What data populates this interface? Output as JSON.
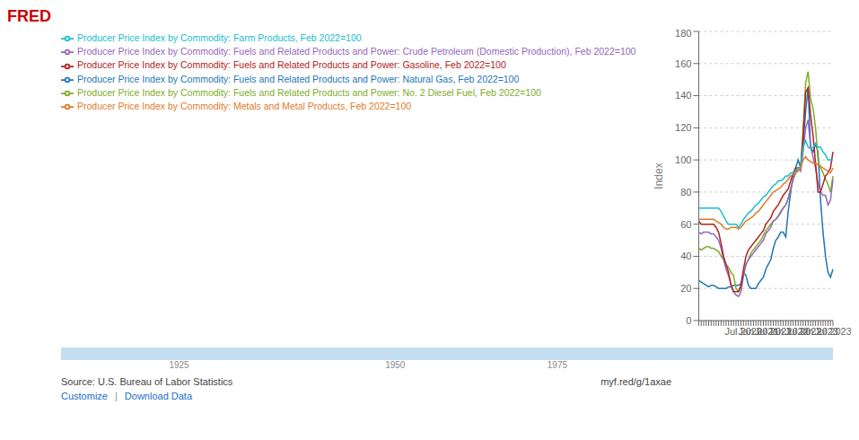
{
  "chart_data": {
    "type": "line",
    "ylabel": "Index",
    "ylim": [
      0,
      180
    ],
    "yticks": [
      0,
      20,
      40,
      60,
      80,
      100,
      120,
      140,
      160,
      180
    ],
    "grid": true,
    "legend": "top",
    "categories": [
      null,
      null,
      null,
      null,
      null,
      null,
      null,
      null,
      null,
      null,
      null,
      null,
      null,
      null,
      null,
      null,
      null,
      null,
      "Jul 2020",
      null,
      null,
      null,
      null,
      null,
      "Jan 2021",
      null,
      null,
      null,
      null,
      null,
      "Jul 2021",
      null,
      null,
      null,
      null,
      null,
      "Jan 2022",
      null,
      null,
      null,
      null,
      null,
      "Jul 2022",
      null,
      null,
      null,
      null,
      null,
      "Jan 2023",
      null,
      null,
      null,
      null,
      null,
      "Jul 2023"
    ],
    "annotations": [
      "FRED",
      "1925",
      "1950",
      "1975",
      "Source: U.S. Bureau of Labor Statistics",
      "myf.red/g/1axae",
      "Customize",
      "|",
      "Download Data"
    ],
    "series": [
      {
        "name": "Producer Price Index by Commodity: Fuels and Related Products and Power: Natural Gas, Feb 2022=100",
        "color": "#1f77b4",
        "values": [
          25,
          24,
          23,
          22,
          21,
          22,
          22,
          21,
          20,
          20,
          20,
          20,
          21,
          21,
          22,
          22,
          22,
          23,
          30,
          28,
          22,
          20,
          20,
          20,
          23,
          25,
          27,
          32,
          35,
          38,
          45,
          50,
          52,
          55,
          55,
          52,
          68,
          80,
          90,
          95,
          100,
          95,
          110,
          130,
          145,
          108,
          105,
          110,
          105,
          75,
          55,
          40,
          30,
          27,
          32
        ]
      },
      {
        "name": "Producer Price Index by Commodity: Fuels and Related Products and Power: No. 2 Diesel Fuel, Feb 2022=100",
        "color": "#7fac2a",
        "values": [
          45,
          44,
          45,
          46,
          46,
          45,
          45,
          44,
          43,
          40,
          38,
          35,
          33,
          30,
          28,
          20,
          18,
          20,
          28,
          35,
          38,
          42,
          44,
          46,
          48,
          50,
          53,
          56,
          58,
          60,
          62,
          63,
          65,
          67,
          70,
          72,
          76,
          82,
          88,
          92,
          95,
          95,
          120,
          148,
          155,
          138,
          132,
          120,
          100,
          95,
          92,
          88,
          85,
          80,
          90
        ]
      },
      {
        "name": "Producer Price Index by Commodity: Fuels and Related Products and Power: Crude Petroleum (Domestic Production), Feb 2022=100",
        "color": "#9467bd",
        "values": [
          55,
          54,
          55,
          55,
          55,
          54,
          54,
          52,
          50,
          45,
          38,
          32,
          28,
          22,
          18,
          16,
          15,
          18,
          28,
          35,
          38,
          40,
          42,
          44,
          46,
          48,
          50,
          54,
          56,
          58,
          62,
          63,
          65,
          68,
          70,
          72,
          76,
          82,
          88,
          92,
          95,
          93,
          105,
          120,
          125,
          108,
          102,
          95,
          85,
          80,
          78,
          78,
          72,
          75,
          88
        ]
      },
      {
        "name": "Producer Price Index by Commodity: Fuels and Related Products and Power: Gasoline, Feb 2022=100",
        "color": "#b22222",
        "values": [
          62,
          60,
          60,
          60,
          60,
          60,
          60,
          58,
          55,
          48,
          40,
          35,
          30,
          22,
          18,
          18,
          18,
          22,
          32,
          40,
          44,
          46,
          48,
          50,
          52,
          54,
          56,
          60,
          62,
          64,
          68,
          70,
          72,
          75,
          78,
          80,
          82,
          87,
          92,
          95,
          95,
          95,
          115,
          142,
          145,
          128,
          115,
          98,
          80,
          80,
          85,
          90,
          92,
          95,
          105
        ]
      },
      {
        "name": "Producer Price Index by Commodity: Farm Products, Feb 2022=100",
        "color": "#17becf",
        "values": [
          70,
          70,
          70,
          70,
          70,
          70,
          70,
          70,
          70,
          68,
          65,
          62,
          60,
          60,
          60,
          60,
          58,
          60,
          63,
          65,
          67,
          68,
          70,
          72,
          73,
          75,
          77,
          78,
          80,
          82,
          84,
          85,
          87,
          87,
          88,
          90,
          90,
          92,
          92,
          93,
          95,
          95,
          108,
          112,
          108,
          107,
          108,
          110,
          108,
          108,
          105,
          103,
          100,
          100,
          100
        ]
      },
      {
        "name": "Producer Price Index by Commodity: Metals and Metal Products, Feb 2022=100",
        "color": "#e07b2a",
        "values": [
          63,
          63,
          63,
          63,
          63,
          63,
          63,
          62,
          61,
          60,
          58,
          57,
          57,
          58,
          58,
          58,
          57,
          58,
          60,
          62,
          63,
          64,
          65,
          67,
          68,
          70,
          72,
          74,
          76,
          78,
          80,
          81,
          82,
          83,
          85,
          86,
          88,
          90,
          91,
          92,
          93,
          95,
          100,
          102,
          100,
          99,
          98,
          98,
          97,
          96,
          95,
          94,
          93,
          92,
          95
        ]
      }
    ]
  }
}
